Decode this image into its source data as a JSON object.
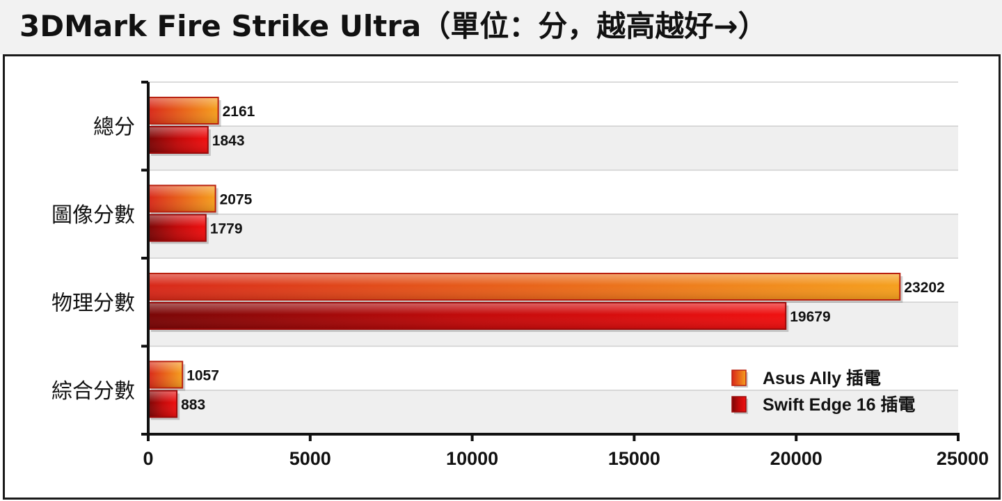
{
  "chart_data": {
    "type": "bar",
    "orientation": "horizontal",
    "title": "3DMark Fire Strike Ultra（單位：分，越高越好→）",
    "categories": [
      "總分",
      "圖像分數",
      "物理分數",
      "綜合分數"
    ],
    "series": [
      {
        "name": "Asus Ally 插電",
        "values": [
          2161,
          2075,
          23202,
          1057
        ],
        "color": "#f39a1e"
      },
      {
        "name": "Swift Edge 16 插電",
        "values": [
          1843,
          1779,
          19679,
          883
        ],
        "color": "#e30d0d"
      }
    ],
    "xlim": [
      0,
      25000
    ],
    "xticks": [
      "0",
      "5000",
      "10000",
      "15000",
      "20000",
      "25000"
    ],
    "xtick_values": [
      0,
      5000,
      10000,
      15000,
      20000,
      25000
    ],
    "legend_position": "bottom-right",
    "grid": true
  }
}
